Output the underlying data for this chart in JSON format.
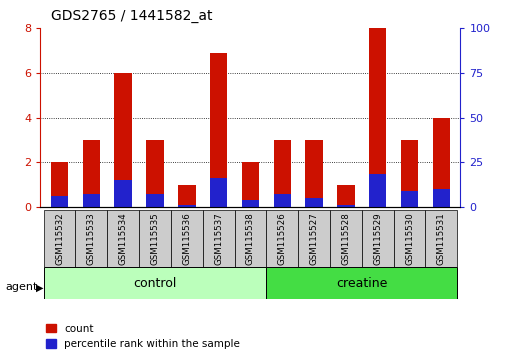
{
  "title": "GDS2765 / 1441582_at",
  "categories": [
    "GSM115532",
    "GSM115533",
    "GSM115534",
    "GSM115535",
    "GSM115536",
    "GSM115537",
    "GSM115538",
    "GSM115526",
    "GSM115527",
    "GSM115528",
    "GSM115529",
    "GSM115530",
    "GSM115531"
  ],
  "count_values": [
    2.0,
    3.0,
    6.0,
    3.0,
    1.0,
    6.9,
    2.0,
    3.0,
    3.0,
    1.0,
    8.0,
    3.0,
    4.0
  ],
  "percentile_values": [
    0.5,
    0.6,
    1.2,
    0.6,
    0.1,
    1.3,
    0.3,
    0.6,
    0.4,
    0.1,
    1.5,
    0.7,
    0.8
  ],
  "count_color": "#cc1100",
  "percentile_color": "#2222cc",
  "ylim_left": [
    0,
    8
  ],
  "ylim_right": [
    0,
    100
  ],
  "yticks_left": [
    0,
    2,
    4,
    6,
    8
  ],
  "yticks_right": [
    0,
    25,
    50,
    75,
    100
  ],
  "legend_count": "count",
  "legend_percentile": "percentile rank within the sample",
  "bar_width": 0.55,
  "background_color": "#ffffff",
  "tick_label_bg": "#cccccc",
  "grid_color": "#000000",
  "left_tick_color": "#cc1100",
  "right_tick_color": "#2222cc",
  "control_color": "#bbffbb",
  "creatine_color": "#44dd44",
  "control_indices": [
    0,
    6
  ],
  "creatine_indices": [
    7,
    12
  ]
}
